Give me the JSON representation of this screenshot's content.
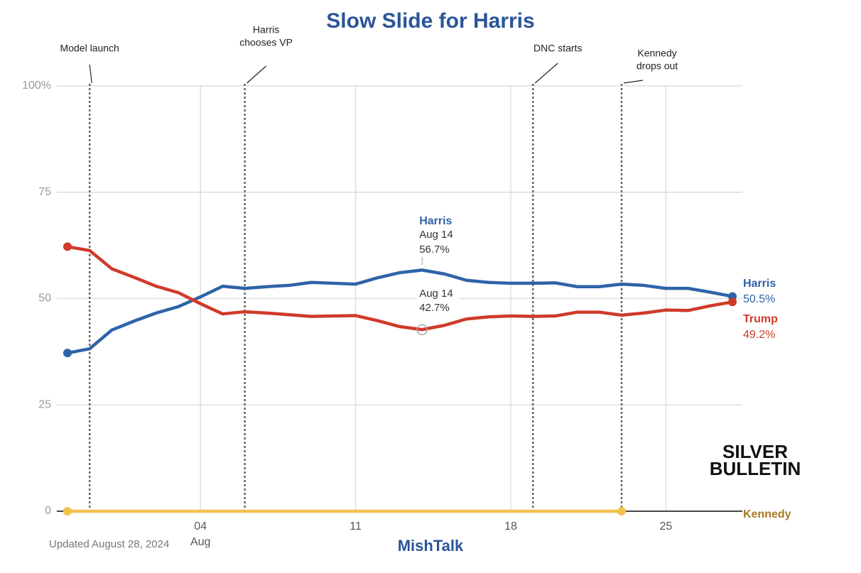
{
  "chart_data": {
    "type": "line",
    "title": "Slow Slide for Harris",
    "x": [
      "Jul 29",
      "Jul 30",
      "Jul 31",
      "Aug 1",
      "Aug 2",
      "Aug 3",
      "Aug 4",
      "Aug 5",
      "Aug 6",
      "Aug 7",
      "Aug 8",
      "Aug 9",
      "Aug 10",
      "Aug 11",
      "Aug 12",
      "Aug 13",
      "Aug 14",
      "Aug 15",
      "Aug 16",
      "Aug 17",
      "Aug 18",
      "Aug 19",
      "Aug 20",
      "Aug 21",
      "Aug 22",
      "Aug 23",
      "Aug 24",
      "Aug 25",
      "Aug 26",
      "Aug 27",
      "Aug 28"
    ],
    "series": [
      {
        "name": "Harris",
        "color": "#2f63a8",
        "values": [
          37.2,
          38.2,
          42.6,
          44.7,
          46.6,
          48.1,
          50.4,
          52.9,
          52.4,
          52.8,
          53.1,
          53.8,
          53.6,
          53.4,
          54.9,
          56.1,
          56.7,
          55.8,
          54.3,
          53.8,
          53.6,
          53.6,
          53.7,
          52.8,
          52.8,
          53.4,
          53.1,
          52.4,
          52.4,
          51.5,
          50.5
        ],
        "value_labels": [
          null,
          null,
          null,
          null,
          null,
          null,
          null,
          null,
          null,
          null,
          null,
          null,
          null,
          null,
          null,
          null,
          "56.7%",
          null,
          null,
          null,
          null,
          null,
          null,
          null,
          null,
          null,
          null,
          null,
          null,
          null,
          "50.5%"
        ]
      },
      {
        "name": "Trump",
        "color": "#d03a2a",
        "values": [
          62.2,
          61.3,
          57.0,
          55.0,
          52.9,
          51.4,
          48.8,
          46.4,
          46.9,
          46.6,
          46.2,
          45.8,
          45.9,
          46.0,
          44.8,
          43.4,
          42.7,
          43.7,
          45.2,
          45.7,
          45.9,
          45.8,
          45.9,
          46.8,
          46.8,
          46.1,
          46.6,
          47.3,
          47.2,
          48.3,
          49.2
        ],
        "value_labels": [
          null,
          null,
          null,
          null,
          null,
          null,
          null,
          null,
          null,
          null,
          null,
          null,
          null,
          null,
          null,
          null,
          "42.7%",
          null,
          null,
          null,
          null,
          null,
          null,
          null,
          null,
          null,
          null,
          null,
          null,
          null,
          "49.2%"
        ]
      },
      {
        "name": "Kennedy",
        "color": "#f2c14e",
        "values": [
          0,
          0,
          0,
          0,
          0,
          0,
          0,
          0,
          0,
          0,
          0,
          0,
          0,
          0,
          0,
          0,
          0,
          0,
          0,
          0,
          0,
          0,
          0,
          0,
          0,
          0,
          null,
          null,
          null,
          null,
          null
        ]
      }
    ],
    "ylim": [
      0,
      100
    ],
    "yticks": [
      0,
      25,
      50,
      75,
      {
        "value": 100,
        "label": "100%"
      }
    ],
    "xticks": [
      {
        "value": "Aug 4",
        "label": "04"
      },
      {
        "value": "Aug 11",
        "label": "11"
      },
      {
        "value": "Aug 18",
        "label": "18"
      },
      {
        "value": "Aug 25",
        "label": "25"
      }
    ],
    "x_month_label": "Aug",
    "grid": true,
    "events": [
      {
        "x": "Jul 30",
        "label_lines": [
          "Model launch"
        ]
      },
      {
        "x": "Aug 6",
        "label_lines": [
          "Harris",
          "chooses VP"
        ]
      },
      {
        "x": "Aug 19",
        "label_lines": [
          "DNC starts"
        ]
      },
      {
        "x": "Aug 23",
        "label_lines": [
          "Kennedy",
          "drops out"
        ]
      }
    ],
    "highlight_index": 16,
    "updated": "Updated August 28, 2024",
    "source": "MishTalk",
    "logo_lines": [
      "SILVER",
      "BULLETIN"
    ]
  }
}
